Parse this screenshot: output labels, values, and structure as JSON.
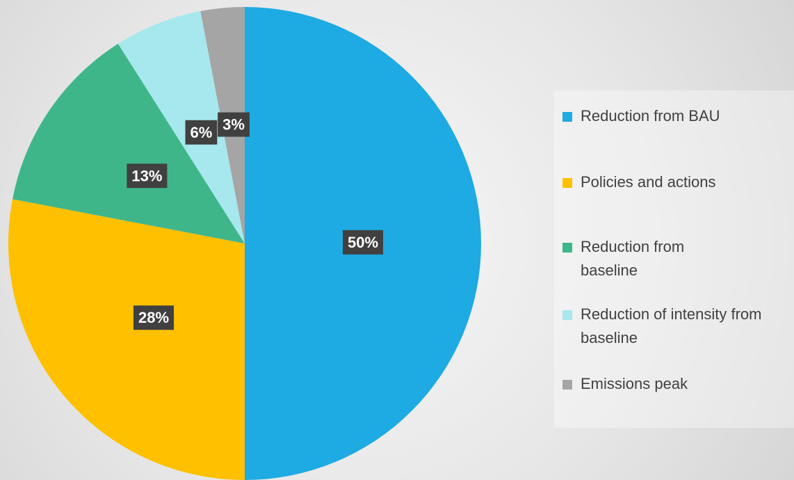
{
  "chart_data": {
    "type": "pie",
    "categories": [
      "Reduction from BAU",
      "Policies and actions",
      "Reduction from baseline",
      "Reduction of intensity from baseline",
      "Emissions peak"
    ],
    "values": [
      50,
      28,
      13,
      6,
      3
    ],
    "value_labels": [
      "50%",
      "28%",
      "13%",
      "6%",
      "3%"
    ],
    "colors": [
      "#1eaae2",
      "#ffc000",
      "#3fb68a",
      "#a6e8ee",
      "#a5a5a5"
    ],
    "legend": "right"
  }
}
